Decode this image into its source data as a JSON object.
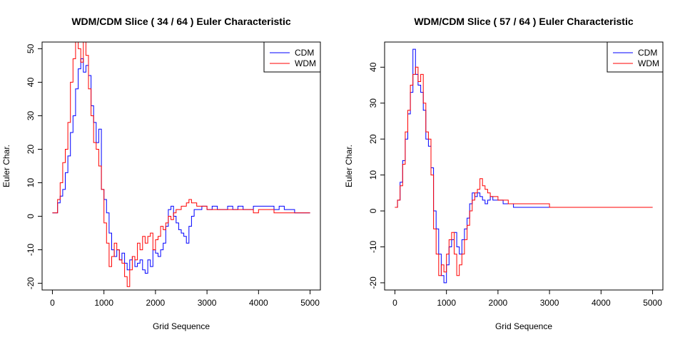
{
  "chart_data": [
    {
      "type": "line",
      "title": "WDM/CDM Slice ( 34 / 64 ) Euler Characteristic",
      "xlabel": "Grid Sequence",
      "ylabel": "Euler Char.",
      "xlim": [
        -200,
        5200
      ],
      "ylim": [
        -22,
        52
      ],
      "xticks": [
        0,
        1000,
        2000,
        3000,
        4000,
        5000
      ],
      "yticks": [
        -20,
        -10,
        0,
        10,
        20,
        30,
        40,
        50
      ],
      "grid": false,
      "legend_position": "top-right",
      "series": [
        {
          "name": "CDM",
          "color": "#0000ff",
          "x": [
            0,
            100,
            150,
            200,
            250,
            300,
            350,
            400,
            450,
            500,
            550,
            600,
            650,
            700,
            750,
            800,
            850,
            900,
            950,
            1000,
            1050,
            1100,
            1150,
            1200,
            1250,
            1300,
            1350,
            1400,
            1450,
            1500,
            1550,
            1600,
            1650,
            1700,
            1750,
            1800,
            1850,
            1900,
            1950,
            2000,
            2050,
            2100,
            2150,
            2200,
            2250,
            2300,
            2350,
            2400,
            2450,
            2500,
            2550,
            2600,
            2650,
            2700,
            2750,
            2800,
            2900,
            3000,
            3100,
            3200,
            3300,
            3400,
            3500,
            3600,
            3700,
            3800,
            3900,
            4000,
            4100,
            4200,
            4300,
            4400,
            4500,
            4600,
            4700,
            4800,
            4900,
            5000
          ],
          "y": [
            1,
            4,
            6,
            8,
            13,
            18,
            25,
            30,
            38,
            44,
            47,
            43,
            45,
            42,
            33,
            28,
            22,
            26,
            8,
            5,
            1,
            -5,
            -10,
            -12,
            -10,
            -13,
            -11,
            -14,
            -16,
            -13,
            -12,
            -15,
            -14,
            -13,
            -16,
            -17,
            -13,
            -15,
            -10,
            -11,
            -12,
            -10,
            -8,
            -3,
            2,
            3,
            0,
            -2,
            -4,
            -5,
            -6,
            -8,
            -3,
            0,
            2,
            2,
            3,
            2,
            3,
            2,
            2,
            3,
            2,
            3,
            2,
            2,
            3,
            3,
            3,
            3,
            2,
            3,
            2,
            2,
            1,
            1,
            1,
            1
          ]
        },
        {
          "name": "WDM",
          "color": "#ff0000",
          "x": [
            0,
            100,
            150,
            200,
            250,
            300,
            350,
            400,
            450,
            500,
            550,
            600,
            650,
            700,
            750,
            800,
            850,
            900,
            950,
            1000,
            1050,
            1100,
            1150,
            1200,
            1250,
            1300,
            1350,
            1400,
            1450,
            1500,
            1550,
            1600,
            1650,
            1700,
            1750,
            1800,
            1850,
            1900,
            1950,
            2000,
            2050,
            2100,
            2150,
            2200,
            2250,
            2300,
            2350,
            2400,
            2450,
            2500,
            2550,
            2600,
            2650,
            2700,
            2800,
            2900,
            3000,
            3100,
            3200,
            3300,
            3400,
            3500,
            3600,
            3700,
            3800,
            3900,
            4000,
            4100,
            4200,
            4300,
            4400,
            4500,
            4600,
            4700,
            4800,
            4900,
            5000
          ],
          "y": [
            1,
            5,
            10,
            16,
            20,
            28,
            40,
            47,
            52,
            50,
            46,
            52,
            48,
            38,
            30,
            22,
            20,
            15,
            8,
            -2,
            -8,
            -15,
            -12,
            -8,
            -10,
            -13,
            -14,
            -18,
            -21,
            -16,
            -12,
            -13,
            -8,
            -10,
            -6,
            -8,
            -6,
            -5,
            -10,
            -7,
            -6,
            -3,
            -4,
            -2,
            0,
            -1,
            1,
            2,
            2,
            3,
            3,
            4,
            5,
            4,
            3,
            3,
            2,
            2,
            2,
            2,
            2,
            2,
            2,
            2,
            2,
            1,
            2,
            2,
            2,
            1,
            1,
            1,
            1,
            1,
            1,
            1,
            1
          ]
        }
      ]
    },
    {
      "type": "line",
      "title": "WDM/CDM Slice ( 57 / 64 ) Euler Characteristic",
      "xlabel": "Grid Sequence",
      "ylabel": "Euler Char.",
      "xlim": [
        -200,
        5200
      ],
      "ylim": [
        -22,
        47
      ],
      "xticks": [
        0,
        1000,
        2000,
        3000,
        4000,
        5000
      ],
      "yticks": [
        -20,
        -10,
        0,
        10,
        20,
        30,
        40
      ],
      "grid": false,
      "legend_position": "top-right",
      "series": [
        {
          "name": "CDM",
          "color": "#0000ff",
          "x": [
            0,
            50,
            100,
            150,
            200,
            250,
            300,
            350,
            400,
            450,
            500,
            550,
            600,
            650,
            700,
            750,
            800,
            850,
            900,
            950,
            1000,
            1050,
            1100,
            1150,
            1200,
            1250,
            1300,
            1350,
            1400,
            1450,
            1500,
            1550,
            1600,
            1650,
            1700,
            1750,
            1800,
            1850,
            1900,
            2000,
            2100,
            2200,
            2300,
            2400,
            2500,
            3000,
            3500,
            4000,
            4500,
            5000
          ],
          "y": [
            1,
            3,
            8,
            14,
            20,
            27,
            33,
            45,
            38,
            35,
            33,
            28,
            20,
            18,
            12,
            0,
            -5,
            -12,
            -18,
            -20,
            -15,
            -10,
            -8,
            -6,
            -10,
            -12,
            -8,
            -5,
            -2,
            2,
            5,
            4,
            5,
            4,
            3,
            2,
            3,
            4,
            3,
            3,
            2,
            2,
            1,
            1,
            1,
            1,
            1,
            1,
            1,
            1
          ]
        },
        {
          "name": "WDM",
          "color": "#ff0000",
          "x": [
            0,
            50,
            100,
            150,
            200,
            250,
            300,
            350,
            400,
            450,
            500,
            550,
            600,
            650,
            700,
            750,
            800,
            850,
            900,
            950,
            1000,
            1050,
            1100,
            1150,
            1200,
            1250,
            1300,
            1350,
            1400,
            1450,
            1500,
            1550,
            1600,
            1650,
            1700,
            1750,
            1800,
            1850,
            1900,
            2000,
            2100,
            2200,
            2300,
            2400,
            2500,
            3000,
            3500,
            4000,
            4500,
            5000
          ],
          "y": [
            1,
            3,
            7,
            13,
            22,
            28,
            35,
            38,
            40,
            36,
            38,
            30,
            22,
            20,
            10,
            -5,
            -12,
            -18,
            -15,
            -17,
            -12,
            -8,
            -6,
            -12,
            -18,
            -15,
            -12,
            -8,
            -4,
            0,
            3,
            5,
            6,
            9,
            7,
            6,
            5,
            4,
            4,
            3,
            3,
            2,
            2,
            2,
            2,
            1,
            1,
            1,
            1,
            1
          ]
        }
      ]
    }
  ]
}
